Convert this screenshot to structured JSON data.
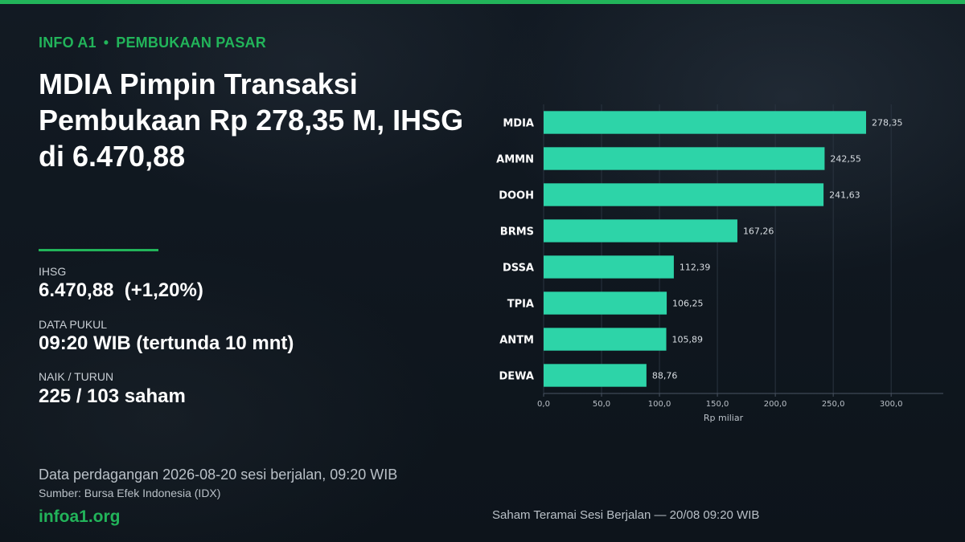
{
  "kicker": {
    "brand": "INFO A1",
    "separator": "•",
    "section": "PEMBUKAAN PASAR"
  },
  "headline": "MDIA Pimpin Transaksi Pembukaan Rp 278,35 M, IHSG di 6.470,88",
  "stats": {
    "ihsg_label": "IHSG",
    "ihsg_value": "6.470,88  (+1,20%)",
    "time_label": "DATA PUKUL",
    "time_value": "09:20 WIB (tertunda 10 mnt)",
    "breadth_label": "NAIK / TURUN",
    "breadth_value": "225 / 103 saham"
  },
  "footer": {
    "trading_note": "Data perdagangan 2026-08-20 sesi berjalan, 09:20 WIB",
    "source": "Sumber: Bursa Efek Indonesia (IDX)",
    "site": "infoa1.org"
  },
  "colors": {
    "accent": "#22b45a",
    "bar": "#2dd4a8",
    "background": "#0f161e"
  },
  "chart_data": {
    "type": "bar",
    "orientation": "horizontal",
    "categories": [
      "MDIA",
      "AMMN",
      "DOOH",
      "BRMS",
      "DSSA",
      "TPIA",
      "ANTM",
      "DEWA"
    ],
    "values": [
      278.35,
      242.55,
      241.63,
      167.26,
      112.39,
      106.25,
      105.89,
      88.76
    ],
    "value_labels": [
      "278,35",
      "242,55",
      "241,63",
      "167,26",
      "112,39",
      "106,25",
      "105,89",
      "88,76"
    ],
    "xlabel": "Rp miliar",
    "xlim": [
      0,
      345
    ],
    "xticks": [
      0,
      50,
      100,
      150,
      200,
      250,
      300
    ],
    "xtick_labels": [
      "0,0",
      "50,0",
      "100,0",
      "150,0",
      "200,0",
      "250,0",
      "300,0"
    ],
    "caption": "Saham Teramai Sesi Berjalan — 20/08 09:20 WIB",
    "grid": "vertical"
  }
}
